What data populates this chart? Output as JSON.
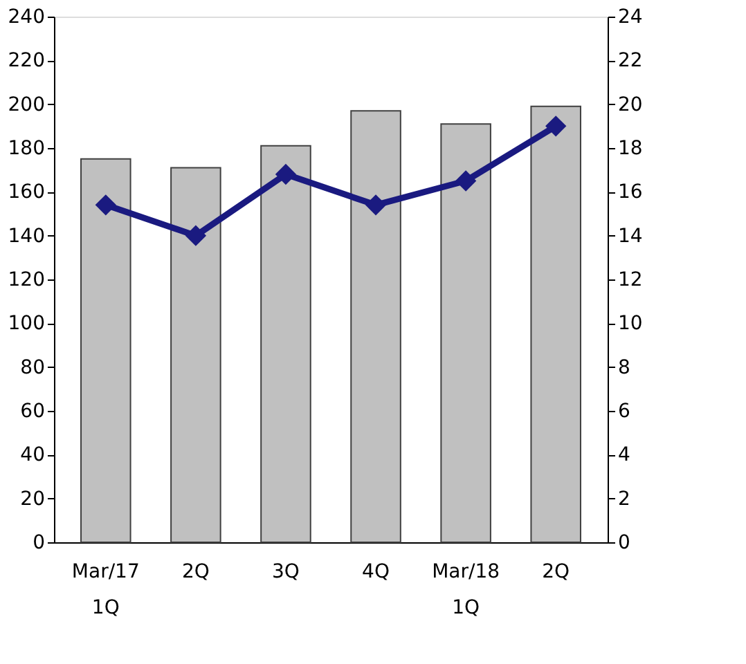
{
  "chart_data": {
    "type": "bar",
    "categories": [
      "Mar/17\n1Q",
      "2Q",
      "3Q",
      "4Q",
      "Mar/18\n1Q",
      "2Q"
    ],
    "series": [
      {
        "color": "#c0c0c0",
        "values": [
          175,
          171,
          181,
          197,
          191,
          199
        ]
      },
      {
        "type": "line",
        "color": "#1a1a80",
        "axis": "y2",
        "marker": "diamond",
        "values": [
          15.4,
          14.0,
          16.8,
          15.4,
          16.5,
          19.0
        ]
      }
    ],
    "ylim": [
      0,
      240
    ],
    "yticks": [
      0,
      20,
      40,
      60,
      80,
      100,
      120,
      140,
      160,
      180,
      200,
      220,
      240
    ],
    "y2lim": [
      0,
      24
    ],
    "y2ticks": [
      0,
      2,
      4,
      6,
      8,
      10,
      12,
      14,
      16,
      18,
      20,
      22,
      24
    ],
    "grid": false
  }
}
